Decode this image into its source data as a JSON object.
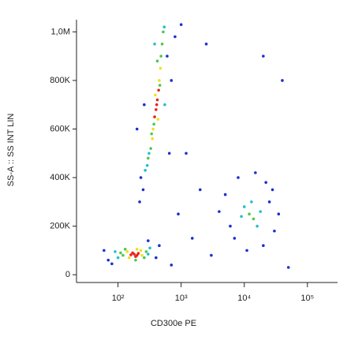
{
  "chart_data": {
    "type": "scatter",
    "x_label": "CD300e PE",
    "y_label": "SS-A :: SS INT LIN",
    "xscale": "log",
    "xlim": [
      22,
      300000
    ],
    "xticks": [
      {
        "value": 100,
        "label": "10²"
      },
      {
        "value": 1000,
        "label": "10³"
      },
      {
        "value": 10000,
        "label": "10⁴"
      },
      {
        "value": 100000,
        "label": "10⁵"
      }
    ],
    "ylim": [
      -32000,
      1050000
    ],
    "yticks": [
      0,
      {
        "value": 200000,
        "label": "200K"
      },
      {
        "value": 400000,
        "label": "400K"
      },
      {
        "value": 600000,
        "label": "600K"
      },
      {
        "value": 800000,
        "label": "800K"
      },
      {
        "value": 1000000,
        "label": "1,0M"
      }
    ],
    "series": [
      {
        "color": "#1a2fd0",
        "x": [
          70,
          400,
          60,
          450,
          300,
          80,
          230,
          600,
          250,
          200,
          700,
          650,
          220,
          800,
          260,
          6000,
          25000,
          30000,
          5000,
          8000,
          20000,
          15000,
          35000,
          7000,
          22000,
          11000,
          28000,
          4000,
          1500,
          2000,
          900,
          3000,
          1200,
          50000,
          40000,
          20000,
          700,
          1000,
          2500
        ],
        "y": [
          60000,
          70000,
          100000,
          120000,
          140000,
          45000,
          400000,
          900000,
          350000,
          600000,
          800000,
          500000,
          300000,
          980000,
          700000,
          200000,
          300000,
          180000,
          330000,
          400000,
          120000,
          420000,
          250000,
          150000,
          380000,
          100000,
          350000,
          260000,
          150000,
          350000,
          250000,
          80000,
          500000,
          30000,
          800000,
          900000,
          40000,
          1030000,
          950000
        ]
      },
      {
        "color": "#20c0d0",
        "x": [
          100,
          300,
          90,
          320,
          290,
          540,
          310,
          380,
          550,
          270,
          10000,
          16000,
          13000,
          9000,
          18000
        ],
        "y": [
          70000,
          85000,
          95000,
          110000,
          450000,
          1020000,
          500000,
          950000,
          700000,
          430000,
          280000,
          200000,
          300000,
          240000,
          260000
        ]
      },
      {
        "color": "#4cc850",
        "x": [
          120,
          260,
          130,
          280,
          190,
          110,
          330,
          480,
          340,
          500,
          300,
          460,
          370,
          520,
          420,
          12000,
          14000
        ],
        "y": [
          80000,
          70000,
          105000,
          95000,
          60000,
          90000,
          520000,
          900000,
          580000,
          950000,
          480000,
          780000,
          620000,
          1000000,
          880000,
          250000,
          230000
        ]
      },
      {
        "color": "#f0e020",
        "x": [
          140,
          240,
          150,
          230,
          200,
          360,
          450,
          390,
          470,
          350,
          430
        ],
        "y": [
          95000,
          80000,
          70000,
          100000,
          105000,
          600000,
          800000,
          740000,
          850000,
          560000,
          640000
        ]
      },
      {
        "color": "#e8231f",
        "x": [
          180,
          200,
          170,
          210,
          190,
          160,
          400,
          420,
          380,
          440,
          410
        ],
        "y": [
          85000,
          80000,
          90000,
          88000,
          75000,
          82000,
          680000,
          720000,
          650000,
          760000,
          700000
        ]
      }
    ]
  }
}
